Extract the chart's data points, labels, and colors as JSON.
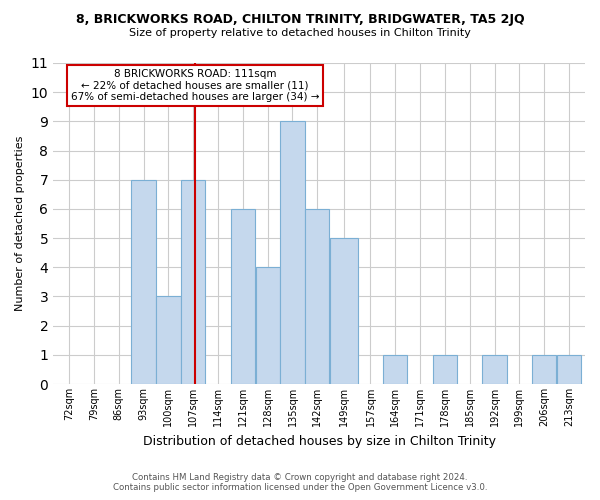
{
  "title1": "8, BRICKWORKS ROAD, CHILTON TRINITY, BRIDGWATER, TA5 2JQ",
  "title2": "Size of property relative to detached houses in Chilton Trinity",
  "xlabel": "Distribution of detached houses by size in Chilton Trinity",
  "ylabel": "Number of detached properties",
  "bin_labels": [
    "72sqm",
    "79sqm",
    "86sqm",
    "93sqm",
    "100sqm",
    "107sqm",
    "114sqm",
    "121sqm",
    "128sqm",
    "135sqm",
    "142sqm",
    "149sqm",
    "157sqm",
    "164sqm",
    "171sqm",
    "178sqm",
    "185sqm",
    "192sqm",
    "199sqm",
    "206sqm",
    "213sqm"
  ],
  "bar_values": [
    0,
    0,
    0,
    7,
    3,
    7,
    0,
    6,
    4,
    9,
    6,
    5,
    0,
    1,
    0,
    1,
    0,
    1,
    0,
    1,
    1
  ],
  "bar_color": "#c5d8ed",
  "bar_edge_color": "#7bafd4",
  "property_line_x": 111,
  "bin_edges": [
    72,
    79,
    86,
    93,
    100,
    107,
    114,
    121,
    128,
    135,
    142,
    149,
    157,
    164,
    171,
    178,
    185,
    192,
    199,
    206,
    213,
    220
  ],
  "annotation_title": "8 BRICKWORKS ROAD: 111sqm",
  "annotation_line1": "← 22% of detached houses are smaller (11)",
  "annotation_line2": "67% of semi-detached houses are larger (34) →",
  "annotation_box_color": "#ffffff",
  "annotation_box_edge": "#cc0000",
  "vline_color": "#cc0000",
  "ylim": [
    0,
    11
  ],
  "yticks": [
    0,
    1,
    2,
    3,
    4,
    5,
    6,
    7,
    8,
    9,
    10,
    11
  ],
  "footer1": "Contains HM Land Registry data © Crown copyright and database right 2024.",
  "footer2": "Contains public sector information licensed under the Open Government Licence v3.0.",
  "background_color": "#ffffff",
  "grid_color": "#cccccc"
}
